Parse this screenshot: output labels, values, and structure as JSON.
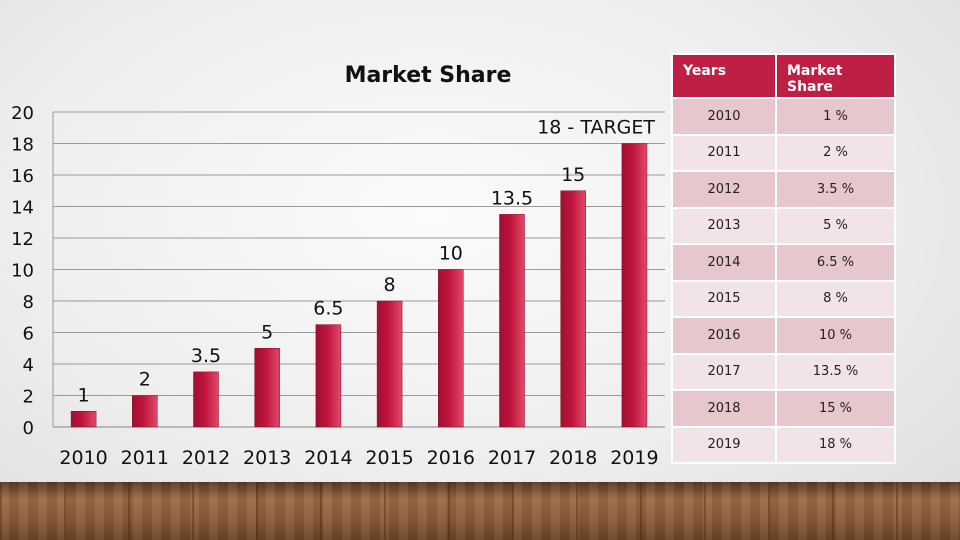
{
  "chart_data": {
    "type": "bar",
    "title": "Market Share",
    "categories": [
      "2010",
      "2011",
      "2012",
      "2013",
      "2014",
      "2015",
      "2016",
      "2017",
      "2018",
      "2019"
    ],
    "values": [
      1,
      2,
      3.5,
      5,
      6.5,
      8,
      10,
      13.5,
      15,
      18
    ],
    "data_labels": [
      "1",
      "2",
      "3.5",
      "5",
      "6.5",
      "8",
      "10",
      "13.5",
      "15",
      "18 - TARGET"
    ],
    "yticks": [
      "0",
      "2",
      "4",
      "6",
      "8",
      "10",
      "12",
      "14",
      "16",
      "18",
      "20"
    ],
    "ylim": [
      0,
      20
    ],
    "xlabel": "",
    "ylabel": "",
    "grid": true,
    "legend": "none",
    "bar_color": "#c0143c"
  },
  "table": {
    "headers": [
      "Years",
      "Market Share"
    ],
    "rows": [
      [
        "2010",
        "1 %"
      ],
      [
        "2011",
        "2 %"
      ],
      [
        "2012",
        "3.5 %"
      ],
      [
        "2013",
        "5 %"
      ],
      [
        "2014",
        "6.5 %"
      ],
      [
        "2015",
        "8 %"
      ],
      [
        "2016",
        "10 %"
      ],
      [
        "2017",
        "13.5 %"
      ],
      [
        "2018",
        "15 %"
      ],
      [
        "2019",
        "18 %"
      ]
    ],
    "header_color": "#bf1f45"
  }
}
